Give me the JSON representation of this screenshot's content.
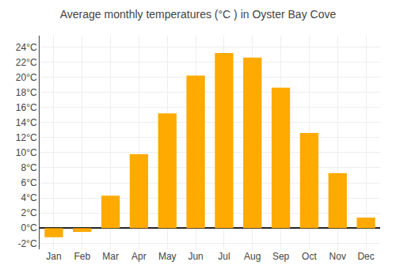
{
  "chart_data": {
    "type": "bar",
    "title": "Average monthly temperatures (°C ) in Oyster Bay Cove",
    "categories": [
      "Jan",
      "Feb",
      "Mar",
      "Apr",
      "May",
      "Jun",
      "Jul",
      "Aug",
      "Sep",
      "Oct",
      "Nov",
      "Dec"
    ],
    "values": [
      -1.2,
      -0.5,
      4.3,
      9.8,
      15.2,
      20.2,
      23.2,
      22.6,
      18.6,
      12.6,
      7.3,
      1.4
    ],
    "color": "#FFAA00",
    "ylim": [
      -2.8,
      25.5
    ],
    "yticks": [
      {
        "value": -2,
        "label": "-2°C"
      },
      {
        "value": 0,
        "label": "0°C"
      },
      {
        "value": 2,
        "label": "2°C"
      },
      {
        "value": 4,
        "label": "4°C"
      },
      {
        "value": 6,
        "label": "6°C"
      },
      {
        "value": 8,
        "label": "8°C"
      },
      {
        "value": 10,
        "label": "10°C"
      },
      {
        "value": 12,
        "label": "12°C"
      },
      {
        "value": 14,
        "label": "14°C"
      },
      {
        "value": 16,
        "label": "16°C"
      },
      {
        "value": 18,
        "label": "18°C"
      },
      {
        "value": 20,
        "label": "20°C"
      },
      {
        "value": 22,
        "label": "22°C"
      },
      {
        "value": 24,
        "label": "24°C"
      }
    ],
    "grid": true
  }
}
